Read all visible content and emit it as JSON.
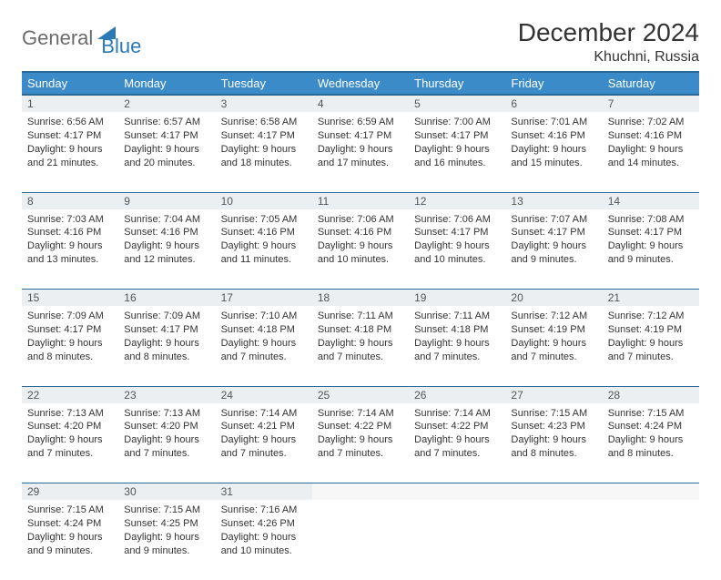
{
  "logo": {
    "general": "General",
    "blue": "Blue"
  },
  "title": "December 2024",
  "location": "Khuchni, Russia",
  "colors": {
    "header_bg": "#3b8bc8",
    "header_border": "#2a6a9a",
    "daynum_bg": "#eceff1",
    "text": "#333333",
    "logo_gray": "#6b6b6b",
    "logo_blue": "#2a7ab8"
  },
  "weekdays": [
    "Sunday",
    "Monday",
    "Tuesday",
    "Wednesday",
    "Thursday",
    "Friday",
    "Saturday"
  ],
  "weeks": [
    [
      {
        "n": "1",
        "sr": "Sunrise: 6:56 AM",
        "ss": "Sunset: 4:17 PM",
        "d1": "Daylight: 9 hours",
        "d2": "and 21 minutes."
      },
      {
        "n": "2",
        "sr": "Sunrise: 6:57 AM",
        "ss": "Sunset: 4:17 PM",
        "d1": "Daylight: 9 hours",
        "d2": "and 20 minutes."
      },
      {
        "n": "3",
        "sr": "Sunrise: 6:58 AM",
        "ss": "Sunset: 4:17 PM",
        "d1": "Daylight: 9 hours",
        "d2": "and 18 minutes."
      },
      {
        "n": "4",
        "sr": "Sunrise: 6:59 AM",
        "ss": "Sunset: 4:17 PM",
        "d1": "Daylight: 9 hours",
        "d2": "and 17 minutes."
      },
      {
        "n": "5",
        "sr": "Sunrise: 7:00 AM",
        "ss": "Sunset: 4:17 PM",
        "d1": "Daylight: 9 hours",
        "d2": "and 16 minutes."
      },
      {
        "n": "6",
        "sr": "Sunrise: 7:01 AM",
        "ss": "Sunset: 4:16 PM",
        "d1": "Daylight: 9 hours",
        "d2": "and 15 minutes."
      },
      {
        "n": "7",
        "sr": "Sunrise: 7:02 AM",
        "ss": "Sunset: 4:16 PM",
        "d1": "Daylight: 9 hours",
        "d2": "and 14 minutes."
      }
    ],
    [
      {
        "n": "8",
        "sr": "Sunrise: 7:03 AM",
        "ss": "Sunset: 4:16 PM",
        "d1": "Daylight: 9 hours",
        "d2": "and 13 minutes."
      },
      {
        "n": "9",
        "sr": "Sunrise: 7:04 AM",
        "ss": "Sunset: 4:16 PM",
        "d1": "Daylight: 9 hours",
        "d2": "and 12 minutes."
      },
      {
        "n": "10",
        "sr": "Sunrise: 7:05 AM",
        "ss": "Sunset: 4:16 PM",
        "d1": "Daylight: 9 hours",
        "d2": "and 11 minutes."
      },
      {
        "n": "11",
        "sr": "Sunrise: 7:06 AM",
        "ss": "Sunset: 4:16 PM",
        "d1": "Daylight: 9 hours",
        "d2": "and 10 minutes."
      },
      {
        "n": "12",
        "sr": "Sunrise: 7:06 AM",
        "ss": "Sunset: 4:17 PM",
        "d1": "Daylight: 9 hours",
        "d2": "and 10 minutes."
      },
      {
        "n": "13",
        "sr": "Sunrise: 7:07 AM",
        "ss": "Sunset: 4:17 PM",
        "d1": "Daylight: 9 hours",
        "d2": "and 9 minutes."
      },
      {
        "n": "14",
        "sr": "Sunrise: 7:08 AM",
        "ss": "Sunset: 4:17 PM",
        "d1": "Daylight: 9 hours",
        "d2": "and 9 minutes."
      }
    ],
    [
      {
        "n": "15",
        "sr": "Sunrise: 7:09 AM",
        "ss": "Sunset: 4:17 PM",
        "d1": "Daylight: 9 hours",
        "d2": "and 8 minutes."
      },
      {
        "n": "16",
        "sr": "Sunrise: 7:09 AM",
        "ss": "Sunset: 4:17 PM",
        "d1": "Daylight: 9 hours",
        "d2": "and 8 minutes."
      },
      {
        "n": "17",
        "sr": "Sunrise: 7:10 AM",
        "ss": "Sunset: 4:18 PM",
        "d1": "Daylight: 9 hours",
        "d2": "and 7 minutes."
      },
      {
        "n": "18",
        "sr": "Sunrise: 7:11 AM",
        "ss": "Sunset: 4:18 PM",
        "d1": "Daylight: 9 hours",
        "d2": "and 7 minutes."
      },
      {
        "n": "19",
        "sr": "Sunrise: 7:11 AM",
        "ss": "Sunset: 4:18 PM",
        "d1": "Daylight: 9 hours",
        "d2": "and 7 minutes."
      },
      {
        "n": "20",
        "sr": "Sunrise: 7:12 AM",
        "ss": "Sunset: 4:19 PM",
        "d1": "Daylight: 9 hours",
        "d2": "and 7 minutes."
      },
      {
        "n": "21",
        "sr": "Sunrise: 7:12 AM",
        "ss": "Sunset: 4:19 PM",
        "d1": "Daylight: 9 hours",
        "d2": "and 7 minutes."
      }
    ],
    [
      {
        "n": "22",
        "sr": "Sunrise: 7:13 AM",
        "ss": "Sunset: 4:20 PM",
        "d1": "Daylight: 9 hours",
        "d2": "and 7 minutes."
      },
      {
        "n": "23",
        "sr": "Sunrise: 7:13 AM",
        "ss": "Sunset: 4:20 PM",
        "d1": "Daylight: 9 hours",
        "d2": "and 7 minutes."
      },
      {
        "n": "24",
        "sr": "Sunrise: 7:14 AM",
        "ss": "Sunset: 4:21 PM",
        "d1": "Daylight: 9 hours",
        "d2": "and 7 minutes."
      },
      {
        "n": "25",
        "sr": "Sunrise: 7:14 AM",
        "ss": "Sunset: 4:22 PM",
        "d1": "Daylight: 9 hours",
        "d2": "and 7 minutes."
      },
      {
        "n": "26",
        "sr": "Sunrise: 7:14 AM",
        "ss": "Sunset: 4:22 PM",
        "d1": "Daylight: 9 hours",
        "d2": "and 7 minutes."
      },
      {
        "n": "27",
        "sr": "Sunrise: 7:15 AM",
        "ss": "Sunset: 4:23 PM",
        "d1": "Daylight: 9 hours",
        "d2": "and 8 minutes."
      },
      {
        "n": "28",
        "sr": "Sunrise: 7:15 AM",
        "ss": "Sunset: 4:24 PM",
        "d1": "Daylight: 9 hours",
        "d2": "and 8 minutes."
      }
    ],
    [
      {
        "n": "29",
        "sr": "Sunrise: 7:15 AM",
        "ss": "Sunset: 4:24 PM",
        "d1": "Daylight: 9 hours",
        "d2": "and 9 minutes."
      },
      {
        "n": "30",
        "sr": "Sunrise: 7:15 AM",
        "ss": "Sunset: 4:25 PM",
        "d1": "Daylight: 9 hours",
        "d2": "and 9 minutes."
      },
      {
        "n": "31",
        "sr": "Sunrise: 7:16 AM",
        "ss": "Sunset: 4:26 PM",
        "d1": "Daylight: 9 hours",
        "d2": "and 10 minutes."
      },
      null,
      null,
      null,
      null
    ]
  ]
}
